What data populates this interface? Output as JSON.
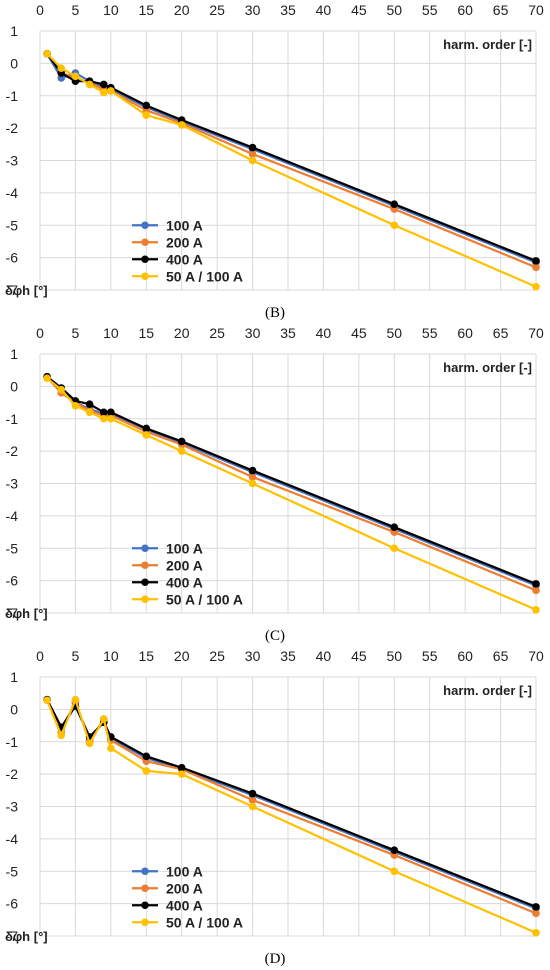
{
  "chart_data": [
    {
      "type": "line",
      "panel_label": "(B)",
      "xlabel": "harm. order [-]",
      "ylabel": "δφh [°]",
      "xlim": [
        0,
        70
      ],
      "ylim": [
        -7,
        1
      ],
      "xticks": [
        0,
        5,
        10,
        15,
        20,
        25,
        30,
        35,
        40,
        45,
        50,
        55,
        60,
        65,
        70
      ],
      "yticks": [
        1,
        0,
        -1,
        -2,
        -3,
        -4,
        -5,
        -6,
        -7
      ],
      "grid": true,
      "legend_position": "bottom-left",
      "x": [
        1,
        3,
        5,
        7,
        9,
        10,
        15,
        20,
        30,
        50,
        70
      ],
      "series": [
        {
          "name": "100 A",
          "color": "#4472C4",
          "values": [
            0.3,
            -0.45,
            -0.3,
            -0.55,
            -0.75,
            -0.8,
            -1.35,
            -1.8,
            -2.65,
            -4.4,
            -6.15
          ]
        },
        {
          "name": "200 A",
          "color": "#ED7D31",
          "values": [
            0.3,
            -0.3,
            -0.45,
            -0.6,
            -0.8,
            -0.85,
            -1.45,
            -1.85,
            -2.8,
            -4.5,
            -6.3
          ]
        },
        {
          "name": "400 A",
          "color": "#000000",
          "values": [
            0.3,
            -0.3,
            -0.55,
            -0.55,
            -0.65,
            -0.75,
            -1.3,
            -1.75,
            -2.6,
            -4.35,
            -6.1
          ]
        },
        {
          "name": "50 A / 100 A",
          "color": "#FFC000",
          "values": [
            0.3,
            -0.15,
            -0.4,
            -0.65,
            -0.9,
            -0.85,
            -1.6,
            -1.9,
            -3.0,
            -5.0,
            -6.9
          ]
        }
      ]
    },
    {
      "type": "line",
      "panel_label": "(C)",
      "xlabel": "harm. order [-]",
      "ylabel": "δφh [°]",
      "xlim": [
        0,
        70
      ],
      "ylim": [
        -7,
        1
      ],
      "xticks": [
        0,
        5,
        10,
        15,
        20,
        25,
        30,
        35,
        40,
        45,
        50,
        55,
        60,
        65,
        70
      ],
      "yticks": [
        1,
        0,
        -1,
        -2,
        -3,
        -4,
        -5,
        -6,
        -7
      ],
      "grid": true,
      "legend_position": "bottom-left",
      "x": [
        1,
        3,
        5,
        7,
        9,
        10,
        15,
        20,
        30,
        50,
        70
      ],
      "series": [
        {
          "name": "100 A",
          "color": "#4472C4",
          "values": [
            0.3,
            -0.1,
            -0.5,
            -0.7,
            -0.85,
            -0.85,
            -1.35,
            -1.75,
            -2.65,
            -4.4,
            -6.15
          ]
        },
        {
          "name": "200 A",
          "color": "#ED7D31",
          "values": [
            0.28,
            -0.2,
            -0.5,
            -0.75,
            -0.9,
            -0.9,
            -1.4,
            -1.8,
            -2.8,
            -4.5,
            -6.3
          ]
        },
        {
          "name": "400 A",
          "color": "#000000",
          "values": [
            0.3,
            -0.05,
            -0.45,
            -0.55,
            -0.8,
            -0.8,
            -1.3,
            -1.7,
            -2.6,
            -4.35,
            -6.1
          ]
        },
        {
          "name": "50 A / 100 A",
          "color": "#FFC000",
          "values": [
            0.25,
            -0.1,
            -0.6,
            -0.8,
            -1.0,
            -1.0,
            -1.5,
            -2.0,
            -3.0,
            -5.0,
            -6.9
          ]
        }
      ]
    },
    {
      "type": "line",
      "panel_label": "(D)",
      "xlabel": "harm. order [-]",
      "ylabel": "δφh [°]",
      "xlim": [
        0,
        70
      ],
      "ylim": [
        -7,
        1
      ],
      "xticks": [
        0,
        5,
        10,
        15,
        20,
        25,
        30,
        35,
        40,
        45,
        50,
        55,
        60,
        65,
        70
      ],
      "yticks": [
        1,
        0,
        -1,
        -2,
        -3,
        -4,
        -5,
        -6,
        -7
      ],
      "grid": true,
      "legend_position": "bottom-left",
      "x": [
        1,
        3,
        5,
        7,
        9,
        10,
        15,
        20,
        30,
        50,
        70
      ],
      "series": [
        {
          "name": "100 A",
          "color": "#4472C4",
          "values": [
            0.3,
            -0.6,
            0.2,
            -0.95,
            -0.35,
            -0.9,
            -1.5,
            -1.85,
            -2.65,
            -4.4,
            -6.15
          ]
        },
        {
          "name": "200 A",
          "color": "#ED7D31",
          "values": [
            0.3,
            -0.7,
            0.25,
            -1.0,
            -0.3,
            -0.95,
            -1.6,
            -1.85,
            -2.8,
            -4.5,
            -6.3
          ]
        },
        {
          "name": "400 A",
          "color": "#000000",
          "values": [
            0.3,
            -0.55,
            0.1,
            -0.85,
            -0.4,
            -0.85,
            -1.45,
            -1.8,
            -2.6,
            -4.35,
            -6.1
          ]
        },
        {
          "name": "50 A / 100 A",
          "color": "#FFC000",
          "values": [
            0.28,
            -0.8,
            0.3,
            -1.05,
            -0.3,
            -1.2,
            -1.9,
            -2.0,
            -3.0,
            -5.0,
            -6.9
          ]
        }
      ]
    }
  ]
}
